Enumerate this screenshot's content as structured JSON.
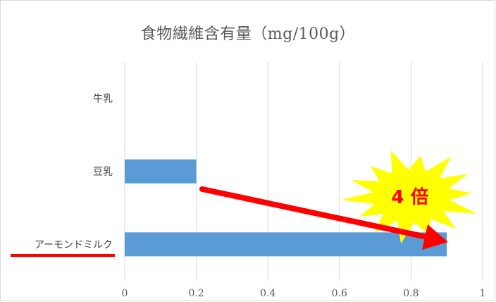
{
  "chart_data": {
    "type": "bar",
    "orientation": "horizontal",
    "title": "食物繊維含有量（mg/100g）",
    "categories": [
      "牛乳",
      "豆乳",
      "アーモンドミルク"
    ],
    "values": [
      0,
      0.2,
      0.9
    ],
    "xlim": [
      0,
      1
    ],
    "xticks": [
      0,
      0.2,
      0.4,
      0.6,
      0.8,
      1
    ],
    "xtick_labels": [
      "0",
      "0.2",
      "0.4",
      "0.6",
      "0.8",
      "1"
    ],
    "xlabel": "",
    "ylabel": "",
    "grid": "vertical",
    "legend": "none",
    "bar_color": "#5b9bd5",
    "annotations": {
      "burst_text": "4 倍",
      "burst_color": "#ffff00",
      "arrow_color": "#ff0000",
      "underline_color": "#ff0000",
      "highlighted_category": "アーモンドミルク"
    }
  }
}
